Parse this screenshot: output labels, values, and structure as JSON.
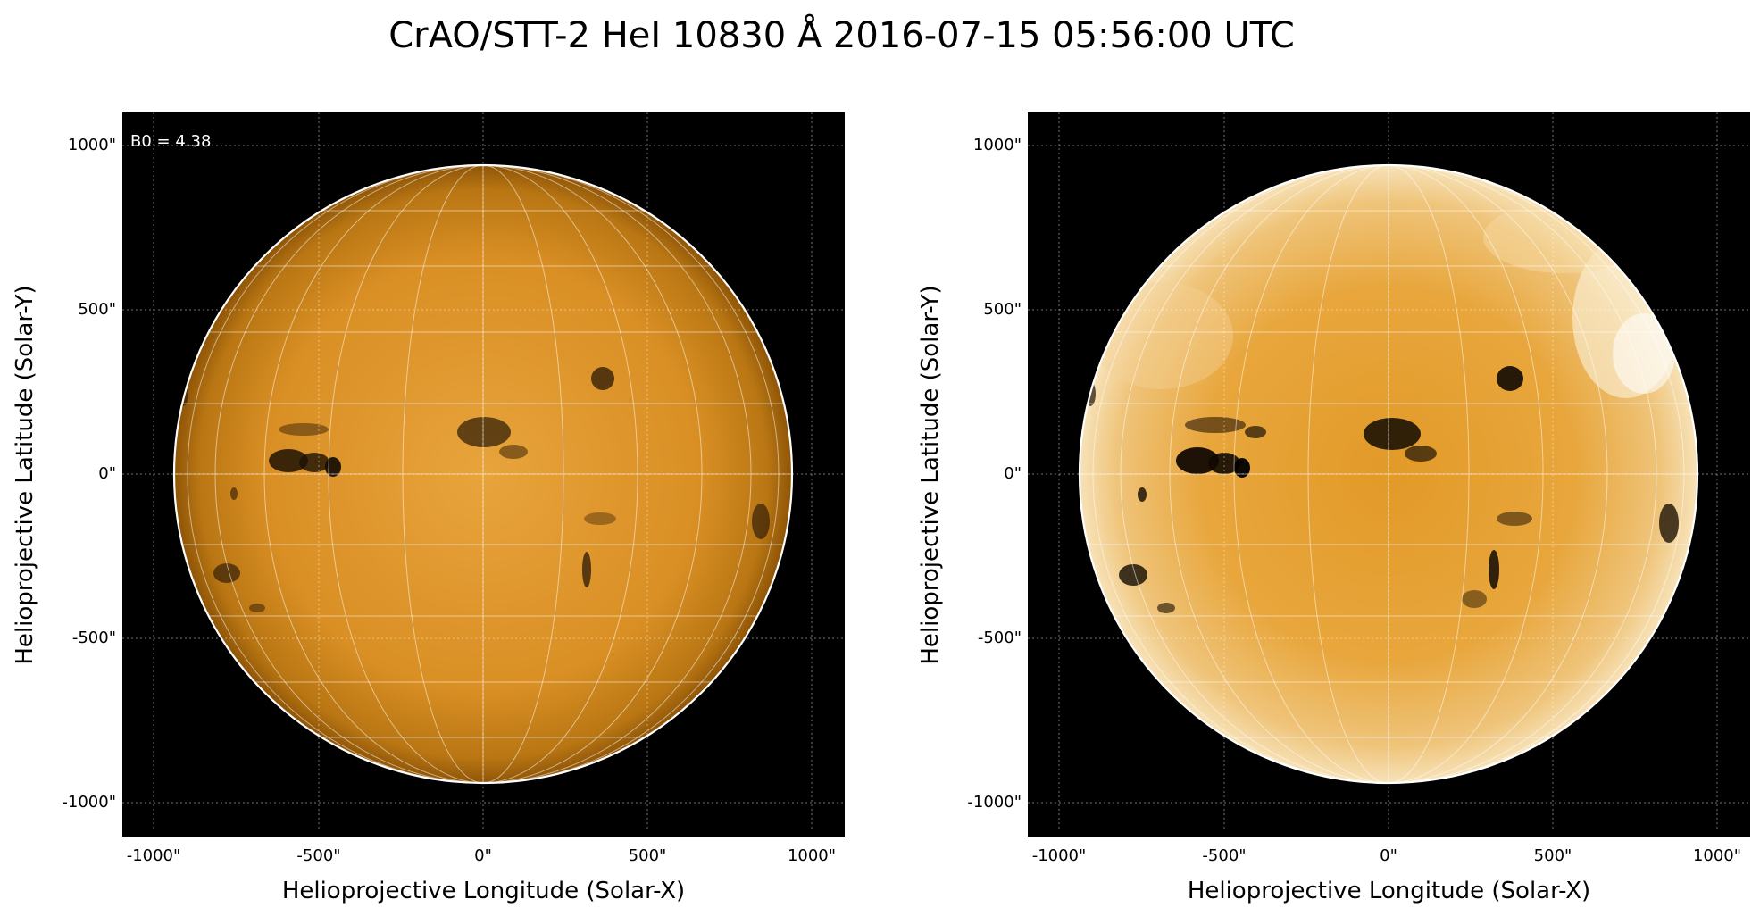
{
  "figure": {
    "title": "CrAO/STT-2 HeI 10830 Å 2016-07-15 05:56:00 UTC"
  },
  "panels": [
    {
      "annotation": "B0 = 4.38",
      "xlabel": "Helioprojective Longitude (Solar-X)",
      "ylabel": "Helioprojective Latitude (Solar-Y)",
      "x_ticks": [
        "-1000\"",
        "-500\"",
        "0\"",
        "500\"",
        "1000\""
      ],
      "y_ticks": [
        "1000\"",
        "500\"",
        "0\"",
        "-500\"",
        "-1000\""
      ],
      "colors": {
        "disk_center": "#e8a43c",
        "disk_edge": "#a8650c",
        "background": "#000000",
        "limb": "#ffffff"
      }
    },
    {
      "xlabel": "Helioprojective Longitude (Solar-X)",
      "ylabel": "Helioprojective Latitude (Solar-Y)",
      "x_ticks": [
        "-1000\"",
        "-500\"",
        "0\"",
        "500\"",
        "1000\""
      ],
      "y_ticks": [
        "1000\"",
        "500\"",
        "0\"",
        "-500\"",
        "-1000\""
      ],
      "colors": {
        "disk_center": "#e29a28",
        "disk_edge": "#f4d9a2",
        "background": "#000000",
        "limb": "#ffffff"
      }
    }
  ]
}
